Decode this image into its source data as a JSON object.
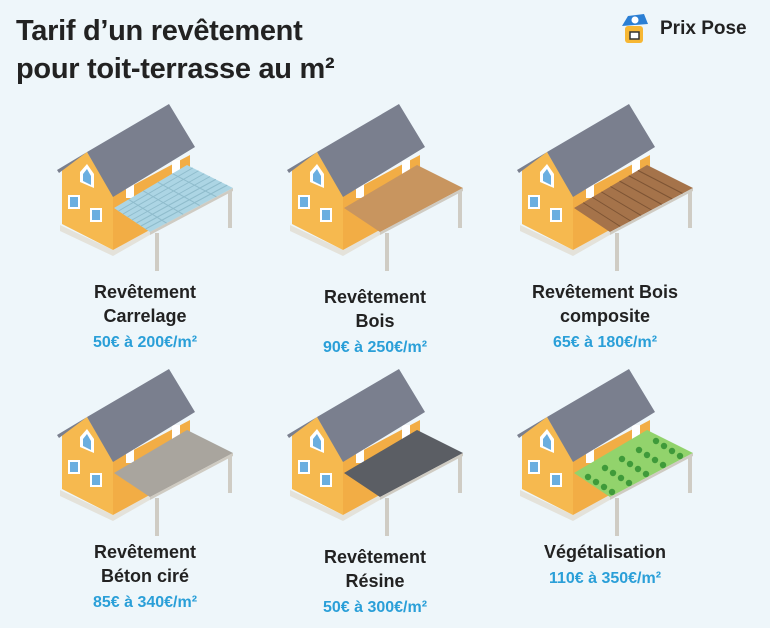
{
  "title": {
    "line1": "Tarif d’un revêtement",
    "line2": "pour toit-terrasse au m²"
  },
  "logo": {
    "text": "Prix Pose",
    "icon": "mascot-cap-icon"
  },
  "colors": {
    "price": "#2a9fd8",
    "wall": "#f6b94f",
    "roof": "#7a7f8e"
  },
  "items": [
    {
      "line1": "Revêtement",
      "line2": "Carrelage",
      "price": "50€ à 200€/m²",
      "surface": "#acd5e4",
      "pattern": "tiles"
    },
    {
      "line1": "Revêtement",
      "line2": "Bois",
      "price": "90€ à 250€/m²",
      "surface": "#c8955f",
      "pattern": "plain"
    },
    {
      "line1": "Revêtement Bois",
      "line2": "composite",
      "price": "65€ à 180€/m²",
      "surface": "#a5734a",
      "pattern": "planks"
    },
    {
      "line1": "Revêtement",
      "line2": "Béton ciré",
      "price": "85€ à 340€/m²",
      "surface": "#a9a59e",
      "pattern": "plain"
    },
    {
      "line1": "Revêtement",
      "line2": "Résine",
      "price": "50€ à 300€/m²",
      "surface": "#5b5e64",
      "pattern": "plain"
    },
    {
      "line1": "Végétalisation",
      "line2": "",
      "price": "110€ à 350€/m²",
      "surface": "#92d36c",
      "pattern": "plants"
    }
  ]
}
